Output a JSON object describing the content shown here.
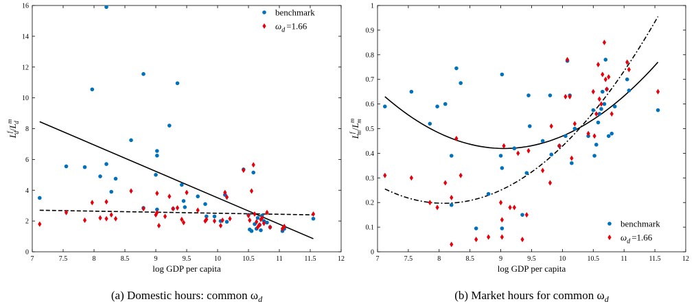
{
  "chart_data": [
    {
      "type": "scatter",
      "caption": "(a) Domestic hours: common ω",
      "caption_sub": "d",
      "xlabel": "log GDP per capita",
      "ylabel": "L",
      "ylabel_parts": {
        "num": "L",
        "num_sup": "f",
        "num_sub": "d",
        "slash": "/",
        "den": "L",
        "den_sup": "m",
        "den_sub": "d"
      },
      "xlim": [
        7,
        12
      ],
      "ylim": [
        0,
        16
      ],
      "xticks": [
        "7",
        "7.5",
        "8",
        "8.5",
        "9",
        "9.5",
        "10",
        "10.5",
        "11",
        "11.5",
        "12"
      ],
      "yticks": [
        "0",
        "2",
        "4",
        "6",
        "8",
        "10",
        "12",
        "14",
        "16"
      ],
      "legend_position": "top-right",
      "series": [
        {
          "name": "benchmark",
          "marker": "circle",
          "color": "#0072BD",
          "points": [
            [
              7.12,
              3.5
            ],
            [
              7.55,
              5.55
            ],
            [
              7.85,
              5.5
            ],
            [
              7.97,
              10.55
            ],
            [
              8.1,
              4.9
            ],
            [
              8.2,
              5.7
            ],
            [
              8.2,
              15.9
            ],
            [
              8.28,
              3.9
            ],
            [
              8.35,
              4.75
            ],
            [
              8.6,
              7.25
            ],
            [
              8.8,
              11.55
            ],
            [
              8.8,
              2.85
            ],
            [
              9.0,
              5.0
            ],
            [
              9.02,
              6.55
            ],
            [
              9.02,
              6.25
            ],
            [
              9.02,
              2.75
            ],
            [
              9.22,
              8.2
            ],
            [
              9.28,
              2.8
            ],
            [
              9.35,
              10.95
            ],
            [
              9.42,
              4.35
            ],
            [
              9.45,
              3.3
            ],
            [
              9.47,
              2.9
            ],
            [
              9.68,
              3.6
            ],
            [
              9.8,
              3.1
            ],
            [
              9.82,
              2.3
            ],
            [
              9.95,
              2.3
            ],
            [
              10.05,
              2.0
            ],
            [
              10.12,
              3.7
            ],
            [
              10.15,
              1.95
            ],
            [
              10.42,
              5.35
            ],
            [
              10.5,
              2.4
            ],
            [
              10.52,
              1.45
            ],
            [
              10.55,
              1.35
            ],
            [
              10.58,
              5.15
            ],
            [
              10.6,
              1.8
            ],
            [
              10.63,
              1.5
            ],
            [
              10.65,
              2.2
            ],
            [
              10.68,
              1.75
            ],
            [
              10.7,
              1.4
            ],
            [
              10.72,
              2.35
            ],
            [
              10.75,
              2.0
            ],
            [
              10.8,
              1.9
            ],
            [
              10.85,
              1.6
            ],
            [
              11.05,
              1.35
            ],
            [
              11.08,
              1.5
            ],
            [
              11.55,
              2.15
            ]
          ]
        },
        {
          "name": "ω",
          "name_sub": "d",
          "name_suffix": "=1.66",
          "marker": "diamond",
          "color": "#E8000B",
          "points": [
            [
              7.12,
              1.8
            ],
            [
              7.55,
              2.55
            ],
            [
              7.85,
              2.05
            ],
            [
              7.97,
              3.2
            ],
            [
              8.1,
              2.2
            ],
            [
              8.2,
              3.25
            ],
            [
              8.2,
              2.15
            ],
            [
              8.28,
              2.4
            ],
            [
              8.35,
              2.15
            ],
            [
              8.6,
              3.95
            ],
            [
              8.8,
              2.8
            ],
            [
              9.0,
              2.4
            ],
            [
              9.02,
              2.55
            ],
            [
              9.02,
              3.8
            ],
            [
              9.05,
              1.7
            ],
            [
              9.15,
              2.3
            ],
            [
              9.22,
              3.6
            ],
            [
              9.28,
              2.8
            ],
            [
              9.35,
              2.85
            ],
            [
              9.42,
              2.1
            ],
            [
              9.45,
              1.9
            ],
            [
              9.5,
              3.85
            ],
            [
              9.68,
              2.7
            ],
            [
              9.8,
              2.0
            ],
            [
              9.82,
              2.1
            ],
            [
              9.95,
              2.0
            ],
            [
              10.05,
              1.7
            ],
            [
              10.08,
              2.05
            ],
            [
              10.12,
              3.85
            ],
            [
              10.15,
              3.55
            ],
            [
              10.2,
              2.15
            ],
            [
              10.42,
              5.3
            ],
            [
              10.5,
              2.35
            ],
            [
              10.52,
              2.05
            ],
            [
              10.55,
              3.95
            ],
            [
              10.58,
              5.65
            ],
            [
              10.6,
              2.45
            ],
            [
              10.63,
              1.95
            ],
            [
              10.65,
              1.6
            ],
            [
              10.68,
              1.75
            ],
            [
              10.7,
              2.1
            ],
            [
              10.72,
              2.2
            ],
            [
              10.75,
              1.85
            ],
            [
              10.8,
              2.55
            ],
            [
              10.85,
              1.6
            ],
            [
              11.05,
              1.5
            ],
            [
              11.08,
              1.65
            ],
            [
              11.55,
              2.45
            ]
          ]
        }
      ],
      "fit_lines": [
        {
          "series": "benchmark",
          "style": "solid",
          "points": [
            [
              7.12,
              8.45
            ],
            [
              11.55,
              0.85
            ]
          ]
        },
        {
          "series": "omega",
          "style": "dashed",
          "points": [
            [
              7.12,
              2.7
            ],
            [
              11.55,
              2.4
            ]
          ]
        }
      ]
    },
    {
      "type": "scatter",
      "caption": "(b) Market hours for common ω",
      "caption_sub": "d",
      "xlabel": "log GDP per capita",
      "ylabel": "L",
      "ylabel_parts": {
        "num": "L",
        "num_sup": "f",
        "num_sub": "m",
        "slash": "/",
        "den": "L",
        "den_sup": "m",
        "den_sub": "m"
      },
      "xlim": [
        7,
        12
      ],
      "ylim": [
        0,
        1
      ],
      "xticks": [
        "7",
        "7.5",
        "8",
        "8.5",
        "9",
        "9.5",
        "10",
        "10.5",
        "11",
        "11.5",
        "12"
      ],
      "yticks": [
        "0",
        "0.1",
        "0.2",
        "0.3",
        "0.4",
        "0.5",
        "0.6",
        "0.7",
        "0.8",
        "0.9",
        "1"
      ],
      "legend_position": "bottom-right",
      "series": [
        {
          "name": "benchmark",
          "marker": "circle",
          "color": "#0072BD",
          "points": [
            [
              7.12,
              0.59
            ],
            [
              7.55,
              0.65
            ],
            [
              7.85,
              0.52
            ],
            [
              7.97,
              0.59
            ],
            [
              8.1,
              0.6
            ],
            [
              8.2,
              0.39
            ],
            [
              8.2,
              0.19
            ],
            [
              8.28,
              0.745
            ],
            [
              8.35,
              0.685
            ],
            [
              8.6,
              0.095
            ],
            [
              8.8,
              0.235
            ],
            [
              9.0,
              0.39
            ],
            [
              9.02,
              0.72
            ],
            [
              9.02,
              0.34
            ],
            [
              9.02,
              0.095
            ],
            [
              9.22,
              0.42
            ],
            [
              9.35,
              0.15
            ],
            [
              9.42,
              0.32
            ],
            [
              9.45,
              0.635
            ],
            [
              9.47,
              0.51
            ],
            [
              9.68,
              0.45
            ],
            [
              9.8,
              0.635
            ],
            [
              9.82,
              0.395
            ],
            [
              9.95,
              0.43
            ],
            [
              10.05,
              0.47
            ],
            [
              10.08,
              0.775
            ],
            [
              10.12,
              0.635
            ],
            [
              10.15,
              0.36
            ],
            [
              10.2,
              0.5
            ],
            [
              10.42,
              0.47
            ],
            [
              10.5,
              0.575
            ],
            [
              10.52,
              0.39
            ],
            [
              10.55,
              0.435
            ],
            [
              10.58,
              0.525
            ],
            [
              10.6,
              0.56
            ],
            [
              10.63,
              0.58
            ],
            [
              10.65,
              0.65
            ],
            [
              10.68,
              0.6
            ],
            [
              10.7,
              0.78
            ],
            [
              10.72,
              0.66
            ],
            [
              10.75,
              0.47
            ],
            [
              10.8,
              0.48
            ],
            [
              10.85,
              0.59
            ],
            [
              11.05,
              0.7
            ],
            [
              11.08,
              0.655
            ],
            [
              11.55,
              0.575
            ]
          ]
        },
        {
          "name": "ω",
          "name_sub": "d",
          "name_suffix": "=1.66",
          "marker": "diamond",
          "color": "#E8000B",
          "points": [
            [
              7.12,
              0.31
            ],
            [
              7.55,
              0.3
            ],
            [
              7.85,
              0.2
            ],
            [
              7.97,
              0.18
            ],
            [
              8.1,
              0.28
            ],
            [
              8.2,
              0.03
            ],
            [
              8.2,
              0.22
            ],
            [
              8.28,
              0.46
            ],
            [
              8.35,
              0.31
            ],
            [
              8.6,
              0.05
            ],
            [
              8.8,
              0.06
            ],
            [
              9.0,
              0.2
            ],
            [
              9.02,
              0.13
            ],
            [
              9.02,
              0.06
            ],
            [
              9.05,
              0.43
            ],
            [
              9.15,
              0.18
            ],
            [
              9.22,
              0.18
            ],
            [
              9.28,
              0.4
            ],
            [
              9.35,
              0.05
            ],
            [
              9.42,
              0.15
            ],
            [
              9.45,
              0.41
            ],
            [
              9.68,
              0.33
            ],
            [
              9.8,
              0.28
            ],
            [
              9.82,
              0.51
            ],
            [
              9.95,
              0.43
            ],
            [
              10.05,
              0.63
            ],
            [
              10.08,
              0.78
            ],
            [
              10.12,
              0.63
            ],
            [
              10.15,
              0.38
            ],
            [
              10.2,
              0.52
            ],
            [
              10.42,
              0.48
            ],
            [
              10.5,
              0.65
            ],
            [
              10.52,
              0.47
            ],
            [
              10.55,
              0.56
            ],
            [
              10.58,
              0.76
            ],
            [
              10.6,
              0.62
            ],
            [
              10.63,
              0.6
            ],
            [
              10.65,
              0.72
            ],
            [
              10.68,
              0.85
            ],
            [
              10.7,
              0.7
            ],
            [
              10.72,
              0.66
            ],
            [
              10.75,
              0.71
            ],
            [
              10.8,
              0.56
            ],
            [
              11.05,
              0.77
            ],
            [
              11.08,
              0.74
            ],
            [
              11.55,
              0.65
            ]
          ]
        }
      ],
      "fit_lines": [
        {
          "series": "benchmark",
          "style": "solid",
          "curve": "quadratic",
          "points": [
            [
              7.12,
              0.63
            ],
            [
              9.15,
              0.42
            ],
            [
              11.55,
              0.77
            ]
          ]
        },
        {
          "series": "omega",
          "style": "dashdot",
          "curve": "quadratic",
          "points": [
            [
              7.12,
              0.255
            ],
            [
              8.3,
              0.2
            ],
            [
              11.55,
              0.955
            ]
          ]
        }
      ]
    }
  ]
}
